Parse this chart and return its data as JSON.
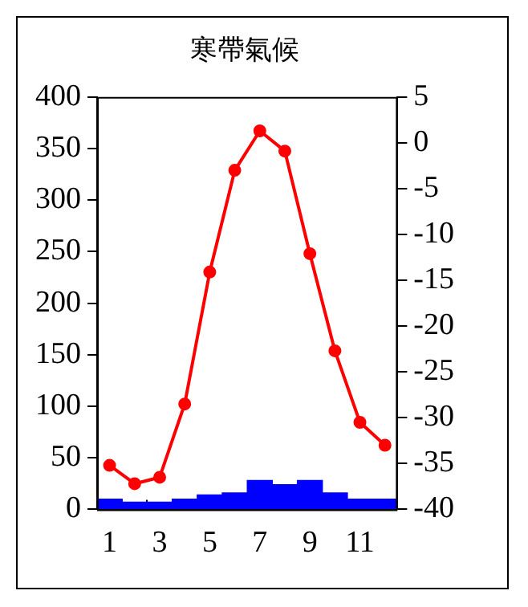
{
  "chart_data": {
    "type": "bar",
    "title": "寒帶氣候",
    "categories": [
      "1",
      null,
      "3",
      null,
      "5",
      null,
      "7",
      null,
      "9",
      null,
      "11",
      null
    ],
    "series": [
      {
        "color": "#0000ff",
        "values": [
          10,
          7,
          7,
          10,
          14,
          16,
          28,
          24,
          28,
          16,
          10,
          10
        ]
      },
      {
        "type": "line",
        "axis": "y2",
        "color": "#ff0000",
        "marker": "circle",
        "values": [
          -35.2,
          -37.2,
          -36.5,
          -28.5,
          -14.1,
          -3.0,
          1.3,
          -0.9,
          -12.1,
          -22.7,
          -30.5,
          -33.0
        ]
      }
    ],
    "ylim": [
      0,
      400
    ],
    "yticks": [
      0,
      50,
      100,
      150,
      200,
      250,
      300,
      350,
      400
    ],
    "y2lim": [
      -40,
      5
    ],
    "y2ticks": [
      -40,
      -35,
      -30,
      -25,
      -20,
      -15,
      -10,
      -5,
      0,
      5
    ],
    "grid": false,
    "legend": false
  }
}
